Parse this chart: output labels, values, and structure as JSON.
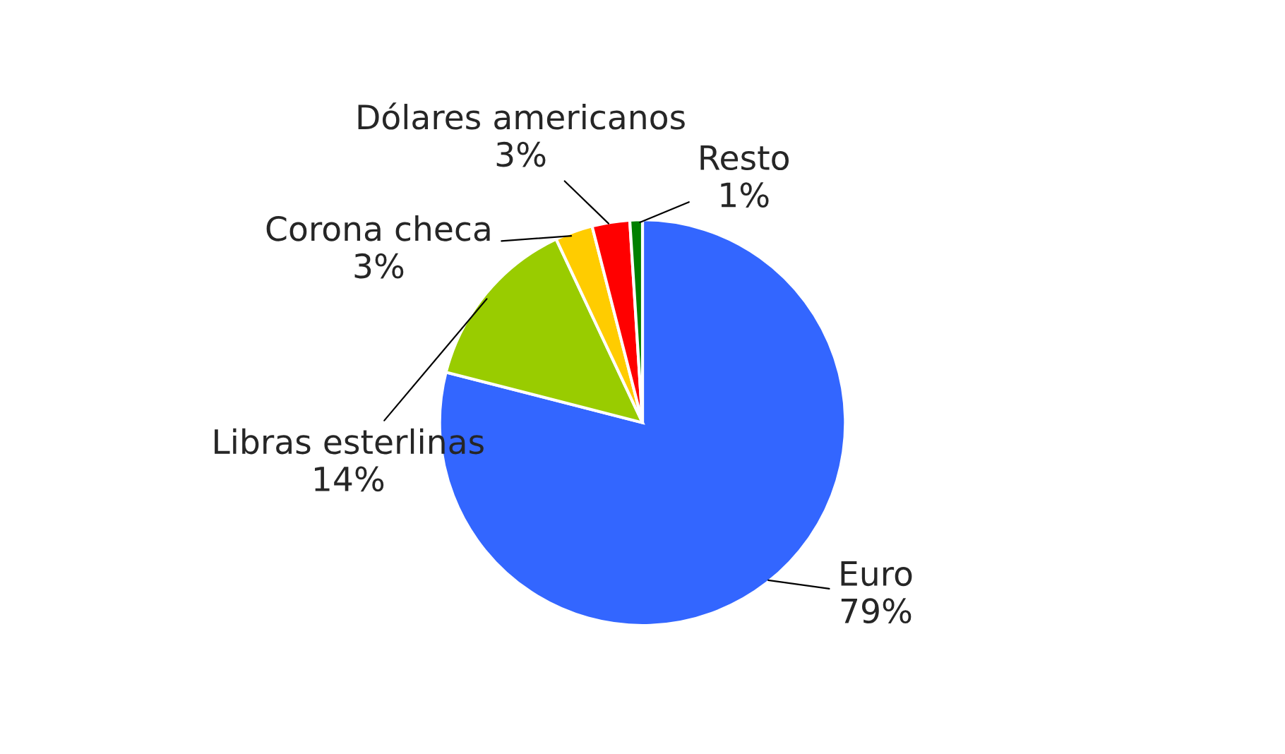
{
  "chart_data": {
    "type": "pie",
    "categories": [
      "Euro",
      "Libras esterlinas",
      "Corona checa",
      "Dólares americanos",
      "Resto"
    ],
    "values": [
      79,
      14,
      3,
      3,
      1
    ],
    "value_labels": [
      "79%",
      "14%",
      "3%",
      "3%",
      "1%"
    ],
    "colors": [
      "#3366ff",
      "#99cc00",
      "#ffcc00",
      "#ff0000",
      "#008000"
    ],
    "legend": false
  }
}
